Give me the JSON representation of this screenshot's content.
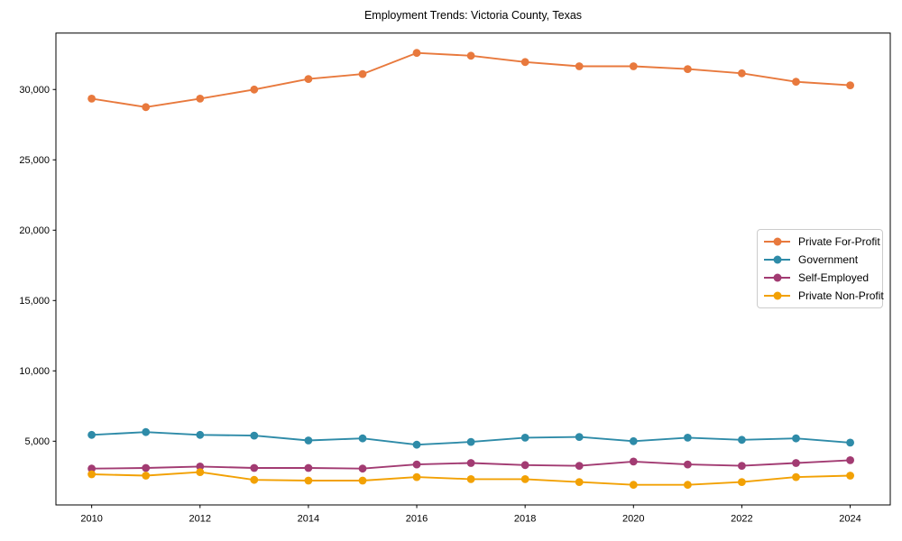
{
  "chart_data": {
    "type": "line",
    "title": "Employment Trends: Victoria County, Texas",
    "xlabel": "",
    "ylabel": "",
    "x": [
      2010,
      2011,
      2012,
      2013,
      2014,
      2015,
      2016,
      2017,
      2018,
      2019,
      2020,
      2021,
      2022,
      2023,
      2024
    ],
    "xlim": [
      2009.34,
      2024.74
    ],
    "ylim": [
      470,
      34010
    ],
    "x_ticks": [
      2010,
      2012,
      2014,
      2016,
      2018,
      2020,
      2022,
      2024
    ],
    "x_tick_labels": [
      "2010",
      "2012",
      "2014",
      "2016",
      "2018",
      "2020",
      "2022",
      "2024"
    ],
    "y_ticks": [
      5000,
      10000,
      15000,
      20000,
      25000,
      30000
    ],
    "y_tick_labels": [
      "5,000",
      "10,000",
      "15,000",
      "20,000",
      "25,000",
      "30,000"
    ],
    "grid": false,
    "background_color": "#ffffff",
    "spine_color": "#000000",
    "legend": {
      "position": "center-right",
      "border_color": "#cccccc"
    },
    "series": [
      {
        "name": "Private For-Profit",
        "color": "#E8793D",
        "marker": "circle",
        "values": [
          29350,
          28750,
          29350,
          30000,
          30750,
          31100,
          32600,
          32400,
          31950,
          31650,
          31650,
          31450,
          31150,
          30550,
          30300
        ]
      },
      {
        "name": "Government",
        "color": "#2E8BA8",
        "marker": "circle",
        "values": [
          5450,
          5650,
          5450,
          5400,
          5050,
          5200,
          4750,
          4950,
          5250,
          5300,
          5000,
          5250,
          5100,
          5200,
          4900
        ]
      },
      {
        "name": "Self-Employed",
        "color": "#A23B72",
        "marker": "circle",
        "values": [
          3050,
          3100,
          3200,
          3100,
          3100,
          3050,
          3350,
          3450,
          3300,
          3250,
          3550,
          3350,
          3250,
          3450,
          3650
        ]
      },
      {
        "name": "Private Non-Profit",
        "color": "#F2A104",
        "marker": "circle",
        "values": [
          2650,
          2550,
          2800,
          2250,
          2200,
          2200,
          2450,
          2300,
          2300,
          2100,
          1900,
          1900,
          2100,
          2450,
          2550
        ]
      }
    ]
  }
}
